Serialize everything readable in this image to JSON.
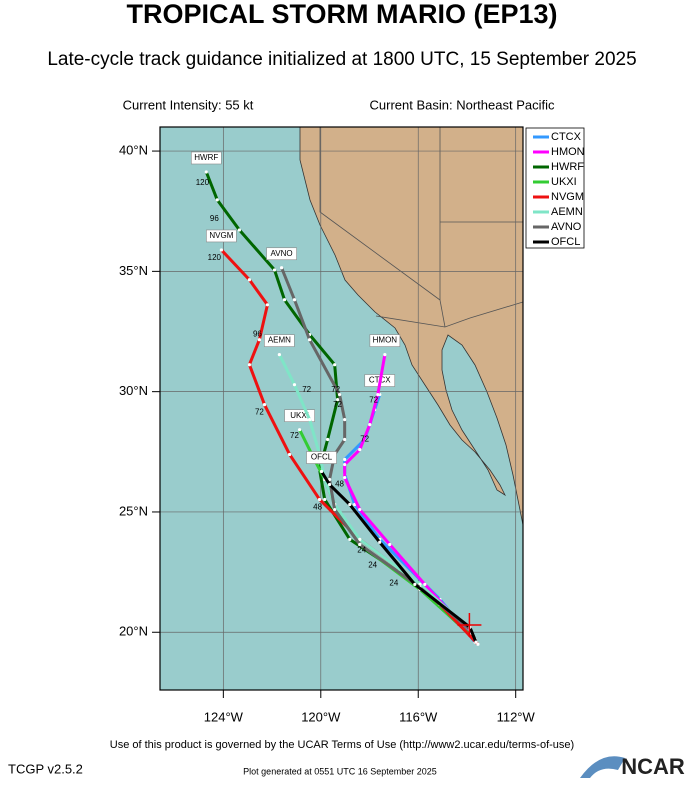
{
  "header": {
    "title": "TROPICAL STORM MARIO (EP13)",
    "subtitle": "Late-cycle track guidance initialized at 1800 UTC, 15 September 2025",
    "intensity": "Current Intensity: 55 kt",
    "basin": "Current Basin: Northeast Pacific"
  },
  "map": {
    "lonlim": [
      -126.6,
      -111.7
    ],
    "latlim": [
      17.6,
      41.0
    ],
    "lonticks": [
      {
        "value": -124,
        "label": "124°W"
      },
      {
        "value": -120,
        "label": "120°W"
      },
      {
        "value": -116,
        "label": "116°W"
      },
      {
        "value": -112,
        "label": "112°W"
      }
    ],
    "latticks": [
      {
        "value": 20,
        "label": "20°N"
      },
      {
        "value": 25,
        "label": "25°N"
      },
      {
        "value": 30,
        "label": "30°N"
      },
      {
        "value": 35,
        "label": "35°N"
      },
      {
        "value": 40,
        "label": "40°N"
      }
    ],
    "grid": true,
    "storm_position": {
      "lon": -113.9,
      "lat": 20.3
    },
    "models": [
      {
        "name": "CTCX",
        "color": "#3399ff",
        "lon": [
          -113.67,
          -115.11,
          -117.58,
          -118.61,
          -119.02,
          -119.02,
          -118.2,
          -117.79,
          -117.58
        ],
        "lat": [
          19.59,
          21.37,
          23.86,
          25.31,
          26.56,
          27.18,
          28.01,
          29.25,
          29.88
        ]
      },
      {
        "name": "HMON",
        "color": "#ff00ff",
        "lon": [
          -113.67,
          -115.73,
          -117.17,
          -118.4,
          -119.02,
          -119.02,
          -118.4,
          -117.99,
          -117.66,
          -117.37
        ],
        "lat": [
          19.71,
          21.99,
          23.65,
          25.1,
          26.43,
          26.97,
          27.59,
          28.63,
          29.88,
          31.54
        ]
      },
      {
        "name": "HWRF",
        "color": "#006600",
        "lon": [
          -113.67,
          -116.35,
          -118.81,
          -119.84,
          -120.05,
          -119.72,
          -119.31,
          -119.43,
          -120.46,
          -121.49,
          -121.9,
          -123.34,
          -124.25,
          -124.7
        ],
        "lat": [
          19.71,
          22.2,
          23.86,
          25.52,
          26.76,
          28.01,
          29.67,
          31.12,
          32.37,
          33.82,
          35.06,
          36.72,
          37.97,
          39.13
        ]
      },
      {
        "name": "UKXI",
        "color": "#33cc33",
        "lon": [
          -113.88,
          -115.93,
          -118.4,
          -119.43,
          -119.84,
          -120.26,
          -120.87
        ],
        "lat": [
          19.92,
          21.78,
          23.65,
          25.31,
          26.35,
          27.18,
          28.42
        ]
      },
      {
        "name": "NVGM",
        "color": "#ee1111",
        "lon": [
          -113.55,
          -115.11,
          -116.76,
          -118.4,
          -120.05,
          -121.28,
          -122.31,
          -122.93,
          -122.52,
          -122.19,
          -122.93,
          -124.08
        ],
        "lat": [
          19.5,
          21.16,
          22.61,
          23.86,
          25.52,
          27.39,
          29.46,
          31.12,
          32.16,
          33.61,
          34.65,
          35.89
        ]
      },
      {
        "name": "AEMN",
        "color": "#7fe5c7",
        "lon": [
          -113.88,
          -115.93,
          -118.4,
          -119.43,
          -119.84,
          -120.05,
          -120.46,
          -121.08,
          -121.7
        ],
        "lat": [
          20.12,
          21.99,
          23.86,
          25.31,
          26.35,
          27.39,
          28.84,
          30.29,
          31.54
        ]
      },
      {
        "name": "AVNO",
        "color": "#666666",
        "lon": [
          -113.88,
          -115.93,
          -118.4,
          -119.43,
          -119.64,
          -119.43,
          -119.02,
          -119.02,
          -119.23,
          -120.46,
          -121.08,
          -121.61
        ],
        "lat": [
          20.12,
          21.86,
          23.65,
          25.1,
          26.35,
          27.39,
          28.01,
          28.84,
          29.88,
          32.16,
          33.82,
          35.15
        ]
      },
      {
        "name": "OFCL",
        "color": "#000000",
        "lon": [
          -113.63,
          -113.88,
          -116.14,
          -117.58,
          -118.81,
          -119.64,
          -119.97
        ],
        "lat": [
          19.59,
          20.21,
          21.99,
          23.74,
          25.31,
          26.14,
          26.68
        ]
      }
    ],
    "tau_labels": [
      {
        "text": "120",
        "lon": -124.86,
        "lat": 38.67
      },
      {
        "text": "96",
        "lon": -124.37,
        "lat": 37.18
      },
      {
        "text": "120",
        "lon": -124.37,
        "lat": 35.56
      },
      {
        "text": "96",
        "lon": -122.6,
        "lat": 32.37
      },
      {
        "text": "72",
        "lon": -122.52,
        "lat": 29.13
      },
      {
        "text": "72",
        "lon": -121.08,
        "lat": 28.17
      },
      {
        "text": "72",
        "lon": -120.58,
        "lat": 30.08
      },
      {
        "text": "72",
        "lon": -119.39,
        "lat": 30.08
      },
      {
        "text": "72",
        "lon": -119.31,
        "lat": 29.46
      },
      {
        "text": "72",
        "lon": -117.83,
        "lat": 29.63
      },
      {
        "text": "72",
        "lon": -118.2,
        "lat": 28.01
      },
      {
        "text": "48",
        "lon": -120.13,
        "lat": 25.19
      },
      {
        "text": "48",
        "lon": -119.23,
        "lat": 26.14
      },
      {
        "text": "24",
        "lon": -118.32,
        "lat": 23.4
      },
      {
        "text": "24",
        "lon": -117.87,
        "lat": 22.78
      },
      {
        "text": "24",
        "lon": -117.0,
        "lat": 22.03
      }
    ]
  },
  "footer": {
    "terms": "Use of this product is governed by the UCAR Terms of Use (http://www2.ucar.edu/terms-of-use)",
    "version": "TCGP v2.5.2",
    "generated": "Plot generated at 0551 UTC   16 September 2025",
    "logo": "NCAR"
  }
}
